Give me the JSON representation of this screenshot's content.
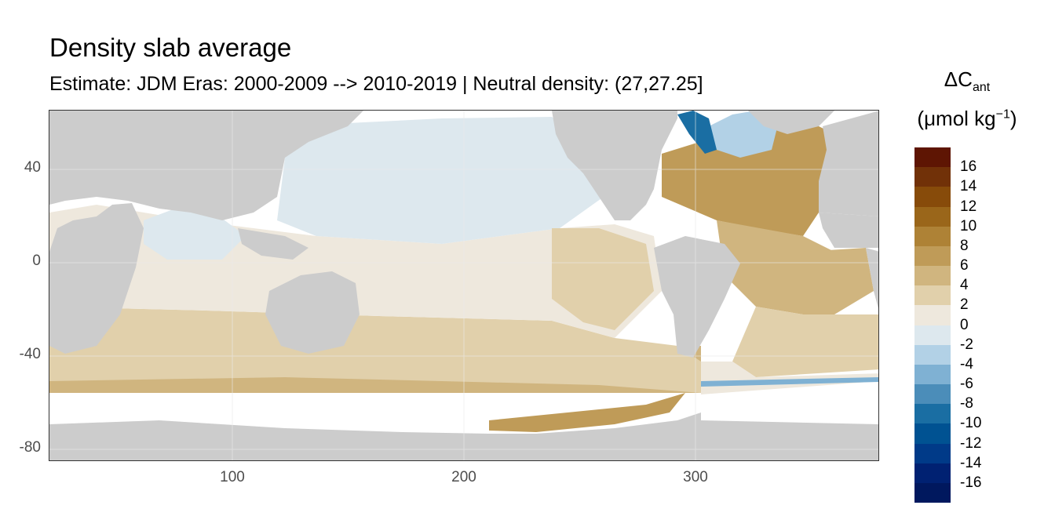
{
  "title": "Density slab average",
  "subtitle": "Estimate: JDM Eras: 2000-2009 --> 2010-2019 | Neutral density: (27,27.25]",
  "legend": {
    "title_line1": "ΔC",
    "title_line1_sub": "ant",
    "title_line2_pre": "(μmol kg",
    "title_line2_sup": "−1",
    "title_line2_post": ")",
    "colors": [
      "#00185e",
      "#002172",
      "#003a88",
      "#005292",
      "#1a6ea3",
      "#4b8db9",
      "#7fb1d3",
      "#b2d1e6",
      "#dde8ee",
      "#eee8dd",
      "#e1d0ab",
      "#d0b57f",
      "#bf9b58",
      "#ae8236",
      "#9a661a",
      "#874b0a",
      "#713108",
      "#5e1503"
    ],
    "labels": [
      "16",
      "14",
      "12",
      "10",
      "8",
      "6",
      "4",
      "2",
      "0",
      "-2",
      "-4",
      "-6",
      "-8",
      "-10",
      "-12",
      "-14",
      "-16"
    ]
  },
  "axes": {
    "x_ticks": [
      "100",
      "200",
      "300"
    ],
    "y_ticks": [
      "40",
      "0",
      "-40",
      "-80"
    ]
  },
  "map": {
    "land_color": "#cccccc",
    "no_data_color": "#ffffff",
    "colors": {
      "north_pacific": "#dde8ee",
      "tropical_band": "#eee8dd",
      "mid_band": "#e1d0ab",
      "southern_band": "#d0b57f",
      "atlantic_north": "#bf9b58",
      "weddell": "#bf9b58",
      "labrador_shelf": "#1a6ea3",
      "labrador_light": "#b2d1e6"
    }
  }
}
